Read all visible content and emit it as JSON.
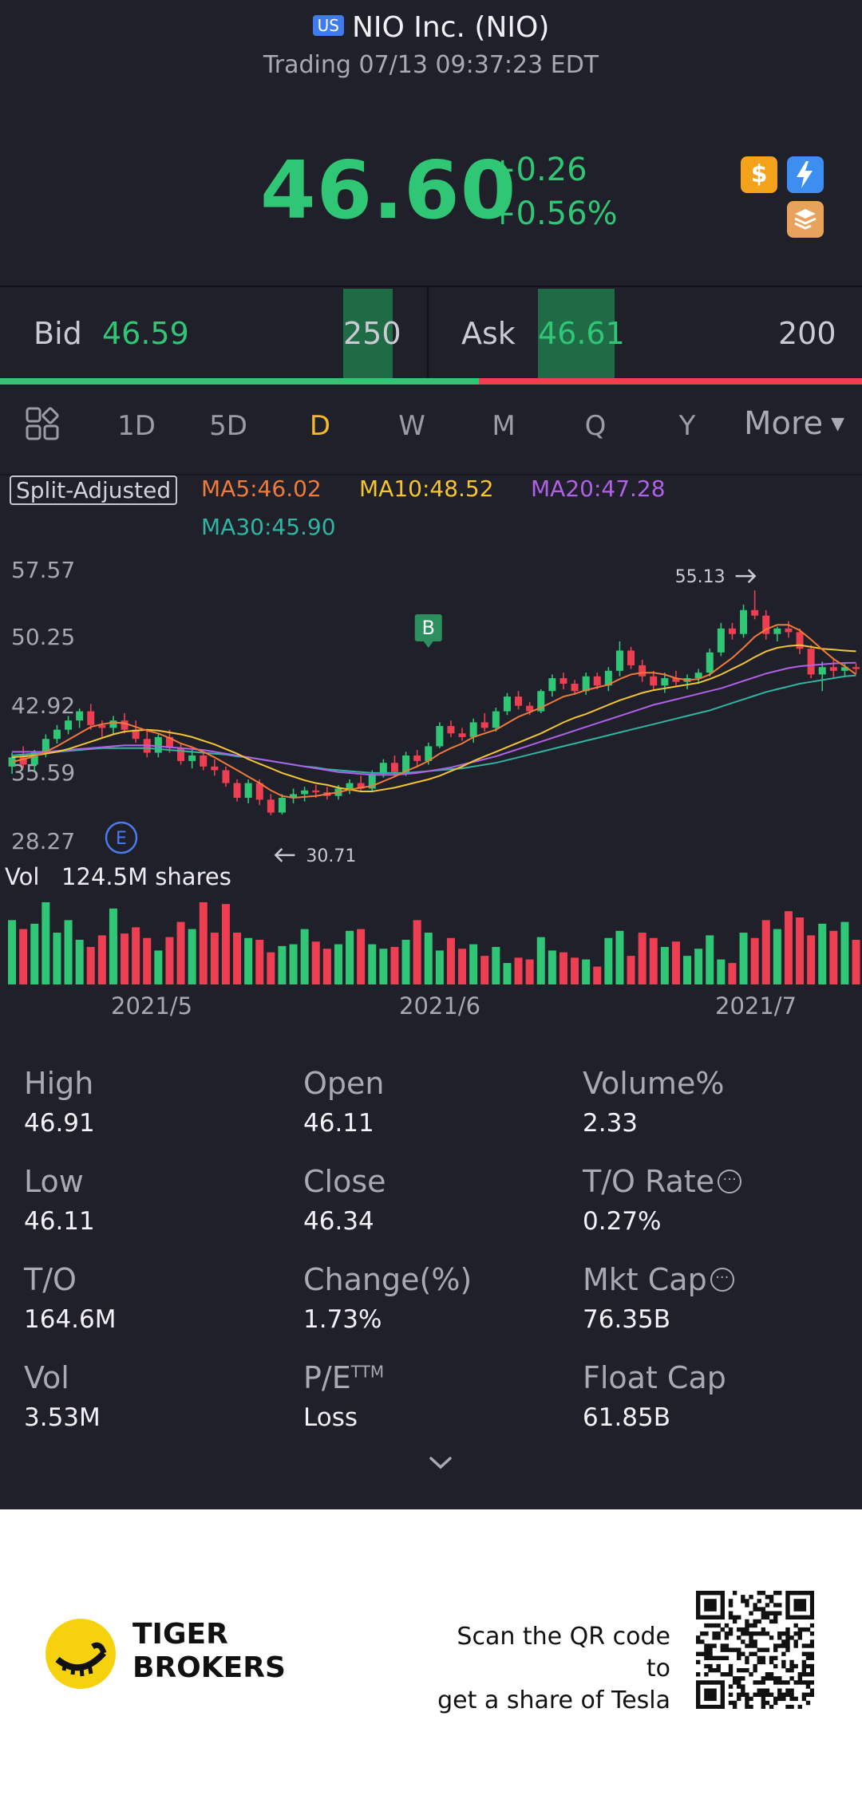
{
  "header": {
    "market_badge": "US",
    "title": "NIO Inc. (NIO)",
    "status": "Trading 07/13 09:37:23 EDT",
    "price": "46.60",
    "change_abs": "+0.26",
    "change_pct": "+0.56%",
    "icons": [
      "dollar-icon",
      "flash-icon",
      "layers-icon"
    ]
  },
  "bid_ask": {
    "bid_label": "Bid",
    "bid_price": "46.59",
    "bid_qty": "250",
    "ask_label": "Ask",
    "ask_price": "46.61",
    "ask_qty": "200",
    "bid_share": 0.556
  },
  "tabs": {
    "items": [
      "1D",
      "5D",
      "D",
      "W",
      "M",
      "Q",
      "Y"
    ],
    "active": "D",
    "more_label": "More"
  },
  "chart": {
    "adjust_label": "Split-Adjusted",
    "ma5": "MA5:46.02",
    "ma10": "MA10:48.52",
    "ma20": "MA20:47.28",
    "ma30": "MA30:45.90",
    "y_ticks": [
      "57.57",
      "50.25",
      "42.92",
      "35.59",
      "28.27"
    ],
    "high_marker": "55.13",
    "low_marker": "30.71",
    "event_marker": "E",
    "buy_marker": "B",
    "vol_label": "Vol",
    "vol_value": "124.5M shares",
    "x_ticks": [
      "2021/5",
      "2021/6",
      "2021/7"
    ]
  },
  "chart_data": {
    "type": "candlestick",
    "ylim": [
      28.27,
      57.57
    ],
    "yticks": [
      57.57,
      50.25,
      42.92,
      35.59,
      28.27
    ],
    "x_ticks": [
      "2021/5",
      "2021/6",
      "2021/7"
    ],
    "high": 55.13,
    "low": 30.71,
    "colors": {
      "up": "#2fc775",
      "down": "#ee3f52",
      "ma5": "#f07a3a",
      "ma10": "#f4c531",
      "ma20": "#b061e8",
      "ma30": "#2eb6a3"
    },
    "candles": [
      [
        36.0,
        37.5,
        35.2,
        37.0
      ],
      [
        37.0,
        38.2,
        35.8,
        36.2
      ],
      [
        36.2,
        37.8,
        35.5,
        37.5
      ],
      [
        37.5,
        39.5,
        37.0,
        39.0
      ],
      [
        39.0,
        40.5,
        38.5,
        40.0
      ],
      [
        40.0,
        41.5,
        39.5,
        41.0
      ],
      [
        41.0,
        42.3,
        40.2,
        42.0
      ],
      [
        42.0,
        42.8,
        40.0,
        40.5
      ],
      [
        40.5,
        41.0,
        39.2,
        40.2
      ],
      [
        40.2,
        41.5,
        39.5,
        41.0
      ],
      [
        41.0,
        41.8,
        39.6,
        40.0
      ],
      [
        40.0,
        41.0,
        38.6,
        39.0
      ],
      [
        39.0,
        40.0,
        37.0,
        37.5
      ],
      [
        37.5,
        39.5,
        37.0,
        39.2
      ],
      [
        39.2,
        40.0,
        37.5,
        38.0
      ],
      [
        38.0,
        38.6,
        36.2,
        36.6
      ],
      [
        36.6,
        37.8,
        35.8,
        37.2
      ],
      [
        37.2,
        37.6,
        35.6,
        36.0
      ],
      [
        36.0,
        36.8,
        35.0,
        35.6
      ],
      [
        35.6,
        36.0,
        33.8,
        34.2
      ],
      [
        34.2,
        34.6,
        32.2,
        32.6
      ],
      [
        32.6,
        34.6,
        32.0,
        34.2
      ],
      [
        34.2,
        34.6,
        31.8,
        32.4
      ],
      [
        32.4,
        33.0,
        30.71,
        31.0
      ],
      [
        31.0,
        33.0,
        30.8,
        32.6
      ],
      [
        32.6,
        33.6,
        32.0,
        33.0
      ],
      [
        33.0,
        33.8,
        32.2,
        33.4
      ],
      [
        33.4,
        34.0,
        32.6,
        33.2
      ],
      [
        33.2,
        33.8,
        32.4,
        32.8
      ],
      [
        32.8,
        34.0,
        32.4,
        33.6
      ],
      [
        33.6,
        34.6,
        33.0,
        34.2
      ],
      [
        34.2,
        35.0,
        33.4,
        33.6
      ],
      [
        33.6,
        35.6,
        33.2,
        35.2
      ],
      [
        35.2,
        36.8,
        34.8,
        36.4
      ],
      [
        36.4,
        37.2,
        35.0,
        35.4
      ],
      [
        35.4,
        37.6,
        35.0,
        37.2
      ],
      [
        37.2,
        37.8,
        36.0,
        36.6
      ],
      [
        36.6,
        38.6,
        36.2,
        38.2
      ],
      [
        38.2,
        40.8,
        38.0,
        40.4
      ],
      [
        40.4,
        41.0,
        39.2,
        39.6
      ],
      [
        39.6,
        40.2,
        38.8,
        39.2
      ],
      [
        39.2,
        41.2,
        38.6,
        40.8
      ],
      [
        40.8,
        41.8,
        39.8,
        40.2
      ],
      [
        40.2,
        42.4,
        39.8,
        42.0
      ],
      [
        42.0,
        44.0,
        41.6,
        43.6
      ],
      [
        43.6,
        44.2,
        42.2,
        42.6
      ],
      [
        42.6,
        43.0,
        41.6,
        42.0
      ],
      [
        42.0,
        44.4,
        41.8,
        44.2
      ],
      [
        44.2,
        46.0,
        43.6,
        45.6
      ],
      [
        45.6,
        46.2,
        44.4,
        45.0
      ],
      [
        45.0,
        45.4,
        43.8,
        44.2
      ],
      [
        44.2,
        46.2,
        43.8,
        45.8
      ],
      [
        45.8,
        46.2,
        44.4,
        44.8
      ],
      [
        44.8,
        46.8,
        44.2,
        46.4
      ],
      [
        46.4,
        49.6,
        45.8,
        48.6
      ],
      [
        48.6,
        49.0,
        46.6,
        47.0
      ],
      [
        47.0,
        47.6,
        45.2,
        45.8
      ],
      [
        45.8,
        46.4,
        44.4,
        44.8
      ],
      [
        44.8,
        46.2,
        44.0,
        45.6
      ],
      [
        45.6,
        46.4,
        44.8,
        45.2
      ],
      [
        45.2,
        46.0,
        44.4,
        45.6
      ],
      [
        45.6,
        46.6,
        45.0,
        46.2
      ],
      [
        46.2,
        48.8,
        45.8,
        48.4
      ],
      [
        48.4,
        51.6,
        48.0,
        51.0
      ],
      [
        51.0,
        51.6,
        49.8,
        50.4
      ],
      [
        50.4,
        53.6,
        50.0,
        53.0
      ],
      [
        53.0,
        55.13,
        52.0,
        52.4
      ],
      [
        52.4,
        53.0,
        49.8,
        50.4
      ],
      [
        50.4,
        51.2,
        49.6,
        51.0
      ],
      [
        51.0,
        51.8,
        50.0,
        50.6
      ],
      [
        50.6,
        51.0,
        48.2,
        48.8
      ],
      [
        48.8,
        49.2,
        45.6,
        46.0
      ],
      [
        46.0,
        47.4,
        44.2,
        46.8
      ],
      [
        46.8,
        47.8,
        45.6,
        46.4
      ],
      [
        46.4,
        47.2,
        45.8,
        46.8
      ],
      [
        46.8,
        47.2,
        46.11,
        46.6
      ]
    ],
    "volumes": [
      0.72,
      0.62,
      0.68,
      0.92,
      0.58,
      0.72,
      0.5,
      0.42,
      0.55,
      0.85,
      0.57,
      0.64,
      0.52,
      0.38,
      0.53,
      0.7,
      0.62,
      0.92,
      0.58,
      0.9,
      0.58,
      0.52,
      0.5,
      0.36,
      0.43,
      0.45,
      0.62,
      0.48,
      0.4,
      0.45,
      0.6,
      0.62,
      0.45,
      0.4,
      0.42,
      0.5,
      0.72,
      0.58,
      0.38,
      0.52,
      0.4,
      0.45,
      0.32,
      0.42,
      0.24,
      0.3,
      0.28,
      0.53,
      0.38,
      0.36,
      0.3,
      0.28,
      0.2,
      0.52,
      0.6,
      0.32,
      0.58,
      0.52,
      0.42,
      0.48,
      0.32,
      0.4,
      0.55,
      0.28,
      0.24,
      0.58,
      0.52,
      0.72,
      0.62,
      0.82,
      0.75,
      0.55,
      0.68,
      0.6,
      0.7,
      0.5
    ],
    "ma_series": {
      "ma5": [
        36.5,
        36.8,
        37.1,
        37.6,
        38.2,
        38.9,
        39.6,
        40.3,
        40.6,
        40.8,
        40.7,
        40.3,
        39.9,
        39.6,
        39.1,
        38.5,
        38.1,
        37.6,
        37.0,
        36.3,
        35.6,
        34.9,
        34.2,
        33.4,
        32.8,
        32.6,
        32.7,
        32.8,
        33.0,
        33.2,
        33.5,
        33.7,
        33.9,
        34.4,
        34.9,
        35.5,
        36.0,
        36.6,
        37.4,
        38.0,
        38.5,
        39.2,
        39.6,
        40.0,
        40.7,
        41.4,
        41.9,
        42.4,
        43.0,
        43.6,
        43.9,
        44.3,
        44.6,
        44.9,
        45.5,
        46.0,
        46.2,
        46.2,
        46.0,
        45.6,
        45.4,
        45.5,
        46.0,
        46.9,
        47.8,
        48.9,
        50.1,
        50.9,
        51.4,
        51.4,
        50.8,
        49.8,
        48.7,
        47.7,
        46.9,
        46.02
      ],
      "ma10": [
        37.0,
        37.1,
        37.2,
        37.4,
        37.6,
        37.9,
        38.3,
        38.7,
        39.1,
        39.5,
        39.8,
        39.9,
        40.0,
        39.9,
        39.7,
        39.5,
        39.2,
        38.8,
        38.4,
        37.9,
        37.4,
        36.8,
        36.3,
        35.8,
        35.3,
        34.9,
        34.5,
        34.2,
        34.0,
        33.7,
        33.5,
        33.3,
        33.3,
        33.5,
        33.7,
        34.0,
        34.3,
        34.6,
        35.0,
        35.5,
        36.0,
        36.6,
        37.1,
        37.6,
        38.1,
        38.6,
        39.1,
        39.6,
        40.2,
        40.8,
        41.3,
        41.7,
        42.2,
        42.7,
        43.2,
        43.6,
        44.0,
        44.3,
        44.5,
        44.7,
        44.9,
        45.1,
        45.5,
        46.0,
        46.6,
        47.2,
        47.9,
        48.5,
        48.9,
        49.1,
        49.2,
        49.0,
        48.8,
        48.7,
        48.6,
        48.52
      ],
      "ma20": [
        37.6,
        37.6,
        37.6,
        37.6,
        37.7,
        37.8,
        37.9,
        38.0,
        38.1,
        38.2,
        38.3,
        38.3,
        38.3,
        38.2,
        38.1,
        38.0,
        37.9,
        37.8,
        37.6,
        37.4,
        37.2,
        37.0,
        36.8,
        36.6,
        36.4,
        36.2,
        36.0,
        35.8,
        35.6,
        35.4,
        35.3,
        35.2,
        35.1,
        35.1,
        35.1,
        35.2,
        35.3,
        35.5,
        35.7,
        35.9,
        36.2,
        36.5,
        36.8,
        37.1,
        37.5,
        37.9,
        38.3,
        38.7,
        39.1,
        39.5,
        39.9,
        40.3,
        40.7,
        41.1,
        41.5,
        41.9,
        42.3,
        42.7,
        43.0,
        43.3,
        43.6,
        43.9,
        44.2,
        44.5,
        44.9,
        45.3,
        45.7,
        46.1,
        46.4,
        46.7,
        46.9,
        47.0,
        47.1,
        47.2,
        47.25,
        47.28
      ],
      "ma30": [
        37.2,
        37.3,
        37.4,
        37.5,
        37.6,
        37.7,
        37.8,
        37.9,
        38.0,
        38.0,
        38.0,
        38.0,
        38.0,
        37.9,
        37.8,
        37.7,
        37.6,
        37.5,
        37.4,
        37.3,
        37.1,
        37.0,
        36.8,
        36.6,
        36.4,
        36.2,
        36.0,
        35.9,
        35.7,
        35.6,
        35.5,
        35.4,
        35.3,
        35.3,
        35.3,
        35.3,
        35.4,
        35.5,
        35.6,
        35.7,
        35.8,
        36.0,
        36.2,
        36.4,
        36.7,
        37.0,
        37.3,
        37.6,
        37.9,
        38.2,
        38.5,
        38.8,
        39.1,
        39.4,
        39.7,
        40.0,
        40.3,
        40.6,
        40.9,
        41.2,
        41.5,
        41.8,
        42.1,
        42.5,
        42.9,
        43.3,
        43.7,
        44.1,
        44.4,
        44.7,
        45.0,
        45.2,
        45.4,
        45.6,
        45.8,
        45.9
      ]
    }
  },
  "stats": [
    {
      "label": "High",
      "value": "46.91"
    },
    {
      "label": "Open",
      "value": "46.11"
    },
    {
      "label": "Volume%",
      "value": "2.33"
    },
    {
      "label": "Low",
      "value": "46.11"
    },
    {
      "label": "Close",
      "value": "46.34"
    },
    {
      "label": "T/O Rate",
      "value": "0.27%"
    },
    {
      "label": "T/O",
      "value": "164.6M"
    },
    {
      "label": "Change(%)",
      "value": "1.73%"
    },
    {
      "label": "Mkt Cap",
      "value": "76.35B"
    },
    {
      "label": "Vol",
      "value": "3.53M"
    },
    {
      "label": "P/E",
      "label_sup": "TTM",
      "value": "Loss"
    },
    {
      "label": "Float Cap",
      "value": "61.85B"
    }
  ],
  "footer": {
    "brand_line1": "TIGER",
    "brand_line2": "BROKERS",
    "promo_line1": "Scan the QR code to",
    "promo_line2": "get a share of Tesla"
  }
}
